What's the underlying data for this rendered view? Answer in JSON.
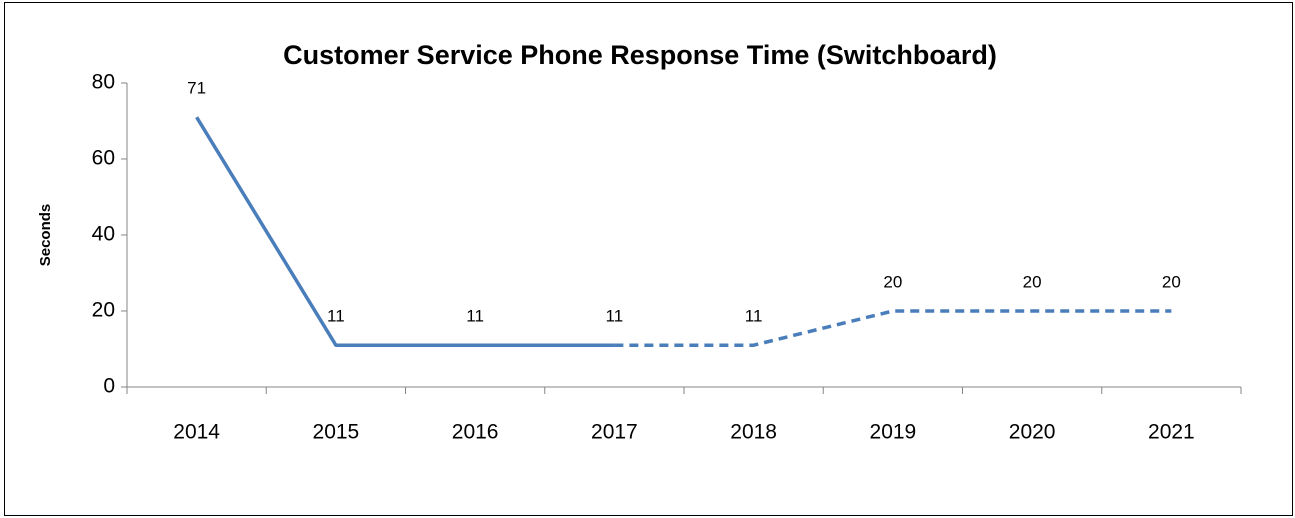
{
  "chart_data": {
    "type": "line",
    "title": "Customer Service Phone Response Time (Switchboard)",
    "y_label": "Seconds",
    "categories": [
      "2014",
      "2015",
      "2016",
      "2017",
      "2018",
      "2019",
      "2020",
      "2021"
    ],
    "values": [
      71,
      11,
      11,
      11,
      11,
      20,
      20,
      20
    ],
    "color": "#4a7ebb",
    "dashed_from": "2017",
    "ylim": [
      0,
      80
    ],
    "yticks": [
      0,
      20,
      40,
      60,
      80
    ],
    "grid": false,
    "data_labels": true
  }
}
